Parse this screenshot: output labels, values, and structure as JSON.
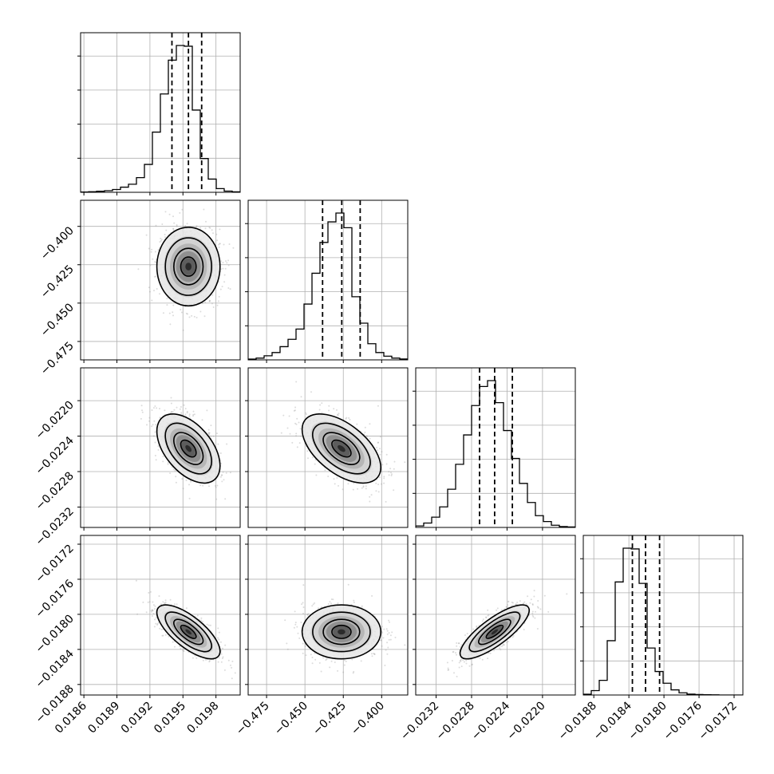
{
  "chart_data": {
    "type": "corner",
    "grid": true,
    "quantile_lines": "dashed",
    "params": [
      {
        "range": [
          0.01857,
          0.02002
        ],
        "ticks": [
          0.0186,
          0.0189,
          0.0192,
          0.0195,
          0.0198
        ],
        "tick_labels": [
          "0.0186",
          "0.0189",
          "0.0192",
          "0.0195",
          "0.0198"
        ],
        "quantiles": [
          0.0194,
          0.01955,
          0.01967
        ],
        "hist": [
          0.002,
          0.004,
          0.007,
          0.011,
          0.019,
          0.035,
          0.055,
          0.1,
          0.19,
          0.41,
          0.67,
          0.9,
          1.0,
          0.995,
          0.56,
          0.23,
          0.09,
          0.025,
          0.008,
          0.003
        ],
        "mean": 0.01955,
        "sd": 0.00014
      },
      {
        "range": [
          -0.487,
          -0.383
        ],
        "ticks": [
          -0.475,
          -0.45,
          -0.425,
          -0.4
        ],
        "tick_labels": [
          "−0.475",
          "−0.450",
          "−0.425",
          "−0.400"
        ],
        "quantiles": [
          -0.4385,
          -0.426,
          -0.414
        ],
        "hist": [
          0.005,
          0.012,
          0.028,
          0.05,
          0.09,
          0.14,
          0.21,
          0.38,
          0.59,
          0.8,
          0.94,
          1.0,
          0.9,
          0.43,
          0.25,
          0.11,
          0.05,
          0.025,
          0.012,
          0.006
        ],
        "mean": -0.4262,
        "sd": 0.0125
      },
      {
        "range": [
          -0.02343,
          -0.02163
        ],
        "ticks": [
          -0.0232,
          -0.0228,
          -0.0224,
          -0.022
        ],
        "tick_labels": [
          "−0.0232",
          "−0.0228",
          "−0.0224",
          "−0.0220"
        ],
        "quantiles": [
          -0.02271,
          -0.02254,
          -0.02234
        ],
        "hist": [
          0.01,
          0.03,
          0.07,
          0.14,
          0.26,
          0.43,
          0.63,
          0.83,
          0.96,
          1.0,
          0.85,
          0.66,
          0.47,
          0.3,
          0.17,
          0.08,
          0.04,
          0.015,
          0.006,
          0.003
        ],
        "mean": -0.02254,
        "sd": 0.00019
      },
      {
        "range": [
          -0.01892,
          -0.0171
        ],
        "ticks": [
          -0.0188,
          -0.0184,
          -0.018,
          -0.0176,
          -0.0172
        ],
        "tick_labels": [
          "−0.0188",
          "−0.0184",
          "−0.0180",
          "−0.0176",
          "−0.0172"
        ],
        "quantiles": [
          -0.01836,
          -0.01821,
          -0.01805
        ],
        "hist": [
          0.005,
          0.03,
          0.1,
          0.37,
          0.77,
          1.0,
          0.995,
          0.76,
          0.32,
          0.16,
          0.08,
          0.035,
          0.015,
          0.006,
          0.003,
          0.002,
          0.001,
          0.0,
          0.0,
          0.0
        ],
        "mean": -0.0182,
        "sd": 0.00015
      }
    ],
    "correlations": [
      [
        1,
        0.0,
        -0.5,
        -0.72
      ],
      [
        0.0,
        1,
        -0.55,
        0.0
      ],
      [
        -0.5,
        -0.55,
        1,
        0.8
      ],
      [
        -0.72,
        0.0,
        0.8,
        1
      ]
    ]
  }
}
